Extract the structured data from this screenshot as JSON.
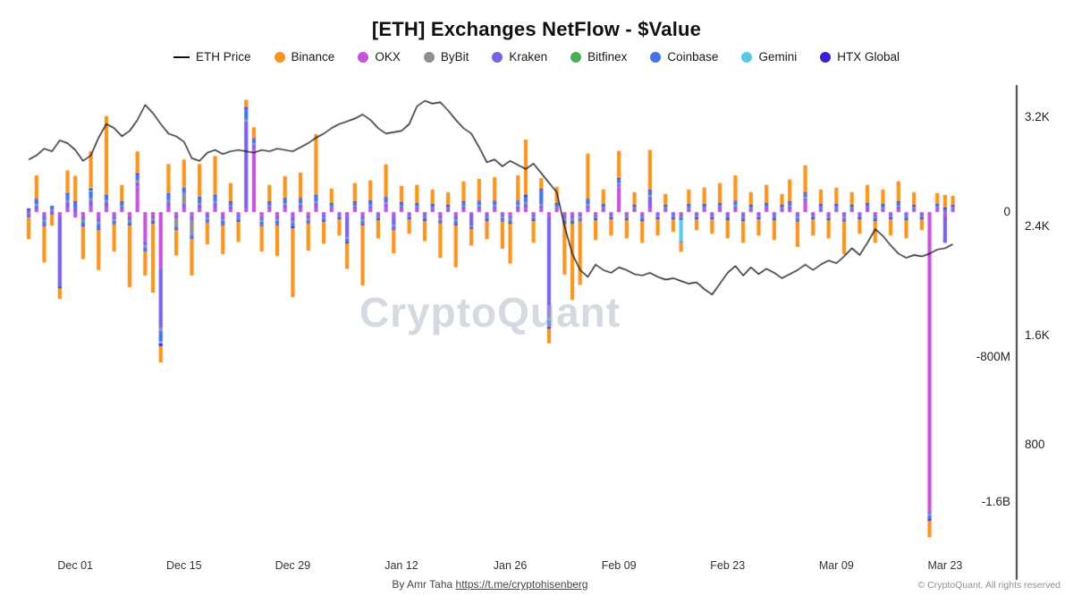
{
  "title": "[ETH] Exchanges NetFlow - $Value",
  "watermark": "CryptoQuant",
  "footer": {
    "byline": "By Amr Taha ",
    "link": "https://t.me/cryptohisenberg",
    "copyright": "© CryptoQuant. All rights reserved"
  },
  "legend": [
    {
      "label": "ETH Price",
      "color": "#111111",
      "type": "line"
    },
    {
      "label": "Binance",
      "color": "#F7941E",
      "type": "dot"
    },
    {
      "label": "OKX",
      "color": "#C653D9",
      "type": "dot"
    },
    {
      "label": "ByBit",
      "color": "#8E8E93",
      "type": "dot"
    },
    {
      "label": "Kraken",
      "color": "#7B61E6",
      "type": "dot"
    },
    {
      "label": "Bitfinex",
      "color": "#4CAF50",
      "type": "dot"
    },
    {
      "label": "Coinbase",
      "color": "#4472E8",
      "type": "dot"
    },
    {
      "label": "Gemini",
      "color": "#5BC8E8",
      "type": "dot"
    },
    {
      "label": "HTX Global",
      "color": "#3D1ED1",
      "type": "dot"
    }
  ],
  "axes": {
    "x_ticks": [
      "Dec 01",
      "Dec 15",
      "Dec 29",
      "Jan 12",
      "Jan 26",
      "Feb 09",
      "Feb 23",
      "Mar 09",
      "Mar 23"
    ],
    "x_tick_indices": [
      6,
      20,
      34,
      48,
      62,
      76,
      90,
      104,
      118
    ],
    "netflow_ticks": [
      {
        "label": "0",
        "value": 0
      },
      {
        "label": "-800M",
        "value": -800
      },
      {
        "label": "-1.6B",
        "value": -1600
      }
    ],
    "price_ticks": [
      {
        "label": "3.2K",
        "value": 3200
      },
      {
        "label": "2.4K",
        "value": 2400
      },
      {
        "label": "1.6K",
        "value": 1600
      },
      {
        "label": "800",
        "value": 800
      }
    ]
  },
  "chart_data": {
    "type": "bar",
    "subtype": "stacked-bar-with-line-overlay",
    "netflow_unit": "million USD per day",
    "price_unit": "USD",
    "x_start_label": "Nov 25",
    "x_end_label": "Mar 24",
    "ylim_netflow_musd": [
      -1900,
      700
    ],
    "ylim_price_usd": [
      0,
      3430
    ],
    "grid": false,
    "legend_position": "top-center",
    "exchanges": [
      "Binance",
      "OKX",
      "ByBit",
      "Kraken",
      "Bitfinex",
      "Coinbase",
      "Gemini",
      "HTX Global"
    ],
    "colors": [
      "#F7941E",
      "#C653D9",
      "#8E8E93",
      "#7B61E6",
      "#4CAF50",
      "#4472E8",
      "#5BC8E8",
      "#3D1ED1"
    ],
    "values": [
      [
        -120,
        -10,
        0,
        -20,
        0,
        15,
        0,
        5
      ],
      [
        130,
        15,
        8,
        20,
        0,
        25,
        0,
        5
      ],
      [
        -200,
        -15,
        -8,
        -30,
        0,
        -20,
        0,
        -5
      ],
      [
        -60,
        10,
        5,
        -15,
        0,
        20,
        0,
        0
      ],
      [
        -60,
        -20,
        0,
        -380,
        0,
        -15,
        0,
        -5
      ],
      [
        120,
        25,
        10,
        30,
        5,
        35,
        0,
        5
      ],
      [
        140,
        -30,
        0,
        25,
        0,
        30,
        0,
        5
      ],
      [
        -180,
        -25,
        -10,
        -20,
        0,
        -20,
        0,
        -5
      ],
      [
        200,
        30,
        10,
        35,
        5,
        40,
        5,
        10
      ],
      [
        -220,
        -30,
        -10,
        -25,
        0,
        -30,
        0,
        -5
      ],
      [
        430,
        25,
        10,
        30,
        5,
        25,
        0,
        5
      ],
      [
        -150,
        -20,
        -8,
        -20,
        0,
        -15,
        0,
        -5
      ],
      [
        90,
        15,
        5,
        15,
        0,
        20,
        0,
        5
      ],
      [
        -340,
        -25,
        -10,
        -20,
        0,
        -15,
        0,
        -5
      ],
      [
        120,
        140,
        10,
        25,
        0,
        30,
        0,
        10
      ],
      [
        -130,
        -160,
        -10,
        -25,
        0,
        -20,
        0,
        -5
      ],
      [
        -380,
        -20,
        -10,
        -15,
        0,
        -15,
        0,
        -5
      ],
      [
        -90,
        -310,
        -15,
        -330,
        0,
        -60,
        -10,
        -15
      ],
      [
        160,
        30,
        10,
        25,
        0,
        35,
        0,
        5
      ],
      [
        -140,
        -20,
        -45,
        -15,
        0,
        -15,
        0,
        -5
      ],
      [
        150,
        25,
        60,
        20,
        5,
        25,
        0,
        5
      ],
      [
        -200,
        -25,
        -80,
        -20,
        0,
        -20,
        0,
        -5
      ],
      [
        180,
        20,
        10,
        20,
        0,
        30,
        0,
        5
      ],
      [
        -120,
        -15,
        -8,
        -15,
        0,
        -15,
        0,
        -5
      ],
      [
        210,
        25,
        10,
        25,
        5,
        30,
        0,
        5
      ],
      [
        -160,
        -20,
        -8,
        -20,
        0,
        -20,
        0,
        -5
      ],
      [
        100,
        15,
        5,
        15,
        0,
        20,
        0,
        5
      ],
      [
        -110,
        -15,
        -5,
        -15,
        0,
        -15,
        0,
        -5
      ],
      [
        40,
        20,
        10,
        480,
        0,
        60,
        0,
        10
      ],
      [
        60,
        350,
        8,
        20,
        0,
        25,
        0,
        5
      ],
      [
        -140,
        -25,
        -8,
        -20,
        0,
        -20,
        0,
        -5
      ],
      [
        90,
        15,
        5,
        15,
        0,
        20,
        0,
        5
      ],
      [
        -170,
        -20,
        -8,
        -20,
        0,
        -20,
        0,
        -5
      ],
      [
        120,
        20,
        8,
        20,
        0,
        25,
        0,
        5
      ],
      [
        -380,
        -25,
        -10,
        -25,
        0,
        -20,
        0,
        -10
      ],
      [
        140,
        20,
        8,
        20,
        0,
        25,
        0,
        5
      ],
      [
        -150,
        -20,
        -8,
        -15,
        0,
        -15,
        0,
        -5
      ],
      [
        330,
        25,
        10,
        25,
        5,
        30,
        0,
        5
      ],
      [
        -120,
        -15,
        -5,
        -15,
        0,
        -15,
        0,
        -5
      ],
      [
        80,
        15,
        5,
        10,
        0,
        15,
        0,
        5
      ],
      [
        -90,
        -10,
        -5,
        -10,
        0,
        -10,
        0,
        -5
      ],
      [
        -140,
        -20,
        -8,
        -120,
        0,
        -20,
        0,
        -5
      ],
      [
        100,
        15,
        5,
        15,
        0,
        20,
        0,
        5
      ],
      [
        -330,
        -20,
        -10,
        -20,
        0,
        -20,
        0,
        -5
      ],
      [
        110,
        20,
        5,
        15,
        0,
        20,
        0,
        5
      ],
      [
        -100,
        -15,
        -5,
        -10,
        0,
        -10,
        0,
        -5
      ],
      [
        180,
        25,
        8,
        20,
        0,
        25,
        0,
        5
      ],
      [
        -130,
        -20,
        -8,
        -50,
        0,
        -15,
        0,
        -5
      ],
      [
        90,
        15,
        5,
        15,
        0,
        15,
        0,
        5
      ],
      [
        -80,
        -10,
        -5,
        -10,
        0,
        -10,
        0,
        -5
      ],
      [
        100,
        15,
        5,
        10,
        0,
        15,
        0,
        5
      ],
      [
        -110,
        -15,
        -5,
        -10,
        0,
        -15,
        0,
        -5
      ],
      [
        80,
        10,
        5,
        10,
        0,
        15,
        0,
        5
      ],
      [
        -190,
        -20,
        -8,
        -15,
        0,
        -15,
        0,
        -5
      ],
      [
        70,
        10,
        5,
        10,
        0,
        10,
        0,
        5
      ],
      [
        -230,
        -20,
        -10,
        -20,
        0,
        -20,
        0,
        -5
      ],
      [
        110,
        15,
        5,
        15,
        0,
        20,
        0,
        5
      ],
      [
        -90,
        -15,
        -5,
        -60,
        0,
        -10,
        0,
        -5
      ],
      [
        120,
        15,
        8,
        15,
        0,
        20,
        0,
        5
      ],
      [
        -100,
        -15,
        -5,
        -10,
        0,
        -15,
        0,
        -5
      ],
      [
        130,
        15,
        8,
        15,
        0,
        20,
        0,
        5
      ],
      [
        -150,
        -15,
        -8,
        -10,
        0,
        -15,
        0,
        -5
      ],
      [
        -220,
        -20,
        -10,
        -15,
        0,
        -15,
        0,
        -5
      ],
      [
        140,
        15,
        8,
        15,
        0,
        20,
        0,
        5
      ],
      [
        300,
        25,
        10,
        20,
        5,
        30,
        0,
        10
      ],
      [
        -120,
        -15,
        -5,
        -10,
        0,
        -15,
        0,
        -5
      ],
      [
        60,
        20,
        8,
        15,
        0,
        80,
        0,
        5
      ],
      [
        -80,
        -25,
        -10,
        -560,
        0,
        -40,
        0,
        -10
      ],
      [
        90,
        15,
        5,
        10,
        0,
        15,
        0,
        5
      ],
      [
        -280,
        -20,
        -10,
        -15,
        0,
        -15,
        0,
        -5
      ],
      [
        -420,
        -20,
        -10,
        -15,
        0,
        -15,
        0,
        -5
      ],
      [
        -350,
        -15,
        -8,
        -12,
        0,
        -12,
        0,
        -5
      ],
      [
        250,
        20,
        8,
        15,
        0,
        25,
        0,
        5
      ],
      [
        -110,
        -15,
        -5,
        -10,
        0,
        -10,
        0,
        -5
      ],
      [
        80,
        10,
        5,
        10,
        0,
        15,
        0,
        5
      ],
      [
        -90,
        -10,
        -5,
        -10,
        0,
        -10,
        0,
        -5
      ],
      [
        150,
        140,
        8,
        15,
        0,
        20,
        0,
        5
      ],
      [
        -100,
        -15,
        -5,
        -10,
        0,
        -10,
        0,
        -5
      ],
      [
        70,
        10,
        5,
        10,
        0,
        10,
        0,
        5
      ],
      [
        -120,
        -15,
        -5,
        -10,
        0,
        -15,
        0,
        -5
      ],
      [
        220,
        25,
        8,
        60,
        0,
        25,
        0,
        5
      ],
      [
        -90,
        -10,
        -5,
        -10,
        0,
        -10,
        0,
        -5
      ],
      [
        60,
        10,
        5,
        10,
        0,
        10,
        0,
        5
      ],
      [
        -70,
        -10,
        -5,
        -10,
        0,
        -10,
        0,
        -5
      ],
      [
        -50,
        -15,
        -5,
        -10,
        0,
        -15,
        -120,
        -5
      ],
      [
        80,
        10,
        5,
        10,
        0,
        15,
        0,
        5
      ],
      [
        -60,
        -10,
        -5,
        -10,
        0,
        -10,
        0,
        -5
      ],
      [
        90,
        10,
        5,
        10,
        0,
        15,
        0,
        5
      ],
      [
        -80,
        -10,
        -5,
        -10,
        0,
        -10,
        0,
        -5
      ],
      [
        110,
        15,
        5,
        10,
        0,
        15,
        0,
        5
      ],
      [
        -100,
        -10,
        -5,
        -10,
        0,
        -15,
        0,
        -5
      ],
      [
        140,
        15,
        8,
        15,
        0,
        20,
        0,
        5
      ],
      [
        -120,
        -15,
        -5,
        -10,
        0,
        -15,
        0,
        -5
      ],
      [
        70,
        10,
        5,
        10,
        0,
        10,
        0,
        5
      ],
      [
        -90,
        -10,
        -5,
        -10,
        0,
        -10,
        0,
        -5
      ],
      [
        100,
        15,
        5,
        10,
        0,
        15,
        0,
        5
      ],
      [
        -110,
        -10,
        -5,
        -10,
        0,
        -15,
        0,
        -5
      ],
      [
        60,
        10,
        5,
        10,
        0,
        10,
        0,
        5
      ],
      [
        120,
        15,
        5,
        15,
        0,
        20,
        0,
        5
      ],
      [
        -140,
        -15,
        -8,
        -10,
        0,
        -15,
        0,
        -5
      ],
      [
        150,
        60,
        8,
        15,
        0,
        20,
        0,
        5
      ],
      [
        -90,
        -10,
        -5,
        -10,
        0,
        -10,
        0,
        -5
      ],
      [
        80,
        10,
        5,
        10,
        0,
        15,
        0,
        5
      ],
      [
        -100,
        -15,
        -5,
        -10,
        0,
        -10,
        0,
        -5
      ],
      [
        90,
        10,
        5,
        10,
        0,
        15,
        0,
        5
      ],
      [
        -180,
        -15,
        -8,
        -10,
        0,
        -15,
        0,
        -5
      ],
      [
        70,
        10,
        5,
        10,
        0,
        10,
        0,
        5
      ],
      [
        -80,
        -10,
        -5,
        -10,
        0,
        -10,
        0,
        -5
      ],
      [
        100,
        15,
        5,
        10,
        0,
        15,
        0,
        5
      ],
      [
        -120,
        -15,
        -5,
        -10,
        0,
        -15,
        0,
        -5
      ],
      [
        80,
        10,
        5,
        10,
        0,
        15,
        0,
        5
      ],
      [
        -90,
        -10,
        -5,
        -10,
        0,
        -10,
        0,
        -5
      ],
      [
        110,
        15,
        5,
        15,
        0,
        20,
        0,
        5
      ],
      [
        -100,
        -10,
        -5,
        -10,
        0,
        -15,
        0,
        -5
      ],
      [
        70,
        10,
        5,
        10,
        0,
        10,
        0,
        5
      ],
      [
        -60,
        -10,
        -5,
        -10,
        0,
        -10,
        0,
        -5
      ],
      [
        -90,
        -1650,
        -10,
        -15,
        0,
        -20,
        0,
        -10
      ],
      [
        60,
        15,
        5,
        10,
        0,
        10,
        0,
        5
      ],
      [
        70,
        -20,
        5,
        -150,
        0,
        15,
        0,
        5
      ],
      [
        50,
        10,
        5,
        10,
        0,
        10,
        0,
        5
      ]
    ],
    "eth_price": [
      2890,
      2920,
      2970,
      2950,
      3030,
      3010,
      2960,
      2880,
      2920,
      3050,
      3150,
      3120,
      3060,
      3100,
      3180,
      3290,
      3230,
      3150,
      3080,
      3060,
      3020,
      2900,
      2880,
      2940,
      2960,
      2930,
      2950,
      2960,
      2950,
      2940,
      2960,
      2950,
      2970,
      2960,
      2950,
      2980,
      3010,
      3050,
      3080,
      3120,
      3150,
      3170,
      3190,
      3220,
      3180,
      3120,
      3080,
      3090,
      3100,
      3150,
      3280,
      3320,
      3300,
      3310,
      3250,
      3180,
      3120,
      3080,
      2980,
      2870,
      2890,
      2840,
      2880,
      2850,
      2820,
      2860,
      2790,
      2720,
      2650,
      2400,
      2200,
      2080,
      2030,
      2120,
      2080,
      2060,
      2100,
      2080,
      2050,
      2040,
      2060,
      2030,
      2010,
      2020,
      2000,
      1980,
      1990,
      1940,
      1900,
      1980,
      2060,
      2110,
      2040,
      2100,
      2050,
      2090,
      2060,
      2020,
      2050,
      2080,
      2120,
      2080,
      2120,
      2150,
      2130,
      2180,
      2240,
      2190,
      2280,
      2380,
      2330,
      2260,
      2200,
      2170,
      2190,
      2180,
      2200,
      2230,
      2240,
      2270
    ]
  }
}
